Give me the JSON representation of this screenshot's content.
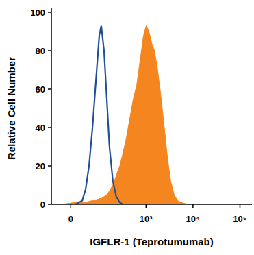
{
  "chart_data": {
    "type": "histogram_overlay",
    "x_label": "IGFLR-1 (Teprotumumab)",
    "y_label": "Relative Cell Number",
    "xlim": [
      -55,
      180000
    ],
    "ylim": [
      0,
      100
    ],
    "xticks": [
      0,
      {
        "value": 1000,
        "label": "10³"
      },
      {
        "value": 10000,
        "label": "10⁴"
      },
      {
        "value": 100000,
        "label": "10⁵"
      }
    ],
    "yticks": [
      0,
      20,
      40,
      60,
      80,
      100
    ],
    "x": [
      -55,
      -22,
      -5,
      12,
      30,
      40,
      51,
      64,
      79,
      95,
      106,
      123,
      142,
      163,
      194,
      230,
      274,
      324,
      383,
      453,
      536,
      633,
      749,
      885,
      1010,
      1155,
      1320,
      1510,
      1725,
      2036,
      2405,
      2840,
      3355,
      3965,
      4685,
      5535,
      7700,
      12700,
      180000
    ],
    "series": [
      {
        "color": "#1f4e9a",
        "type": "line",
        "values": [
          0,
          0,
          0,
          0,
          2,
          8,
          20,
          40,
          65,
          88,
          93,
          80,
          55,
          30,
          12,
          4,
          1,
          0,
          0,
          0,
          0,
          0,
          0,
          0,
          0,
          0,
          0,
          0,
          0,
          0,
          0,
          0,
          0,
          0,
          0,
          0,
          0,
          0,
          0
        ]
      },
      {
        "color": "#f5851f",
        "type": "area",
        "values": [
          0,
          0,
          0.5,
          1,
          1,
          1,
          1.5,
          2,
          2,
          3,
          3,
          4,
          5,
          7,
          10,
          15,
          20,
          27,
          35,
          45,
          55,
          62,
          75,
          88,
          93,
          90,
          84,
          80,
          72,
          58,
          42,
          25,
          12,
          5,
          2,
          1,
          0,
          0,
          0
        ]
      }
    ]
  }
}
